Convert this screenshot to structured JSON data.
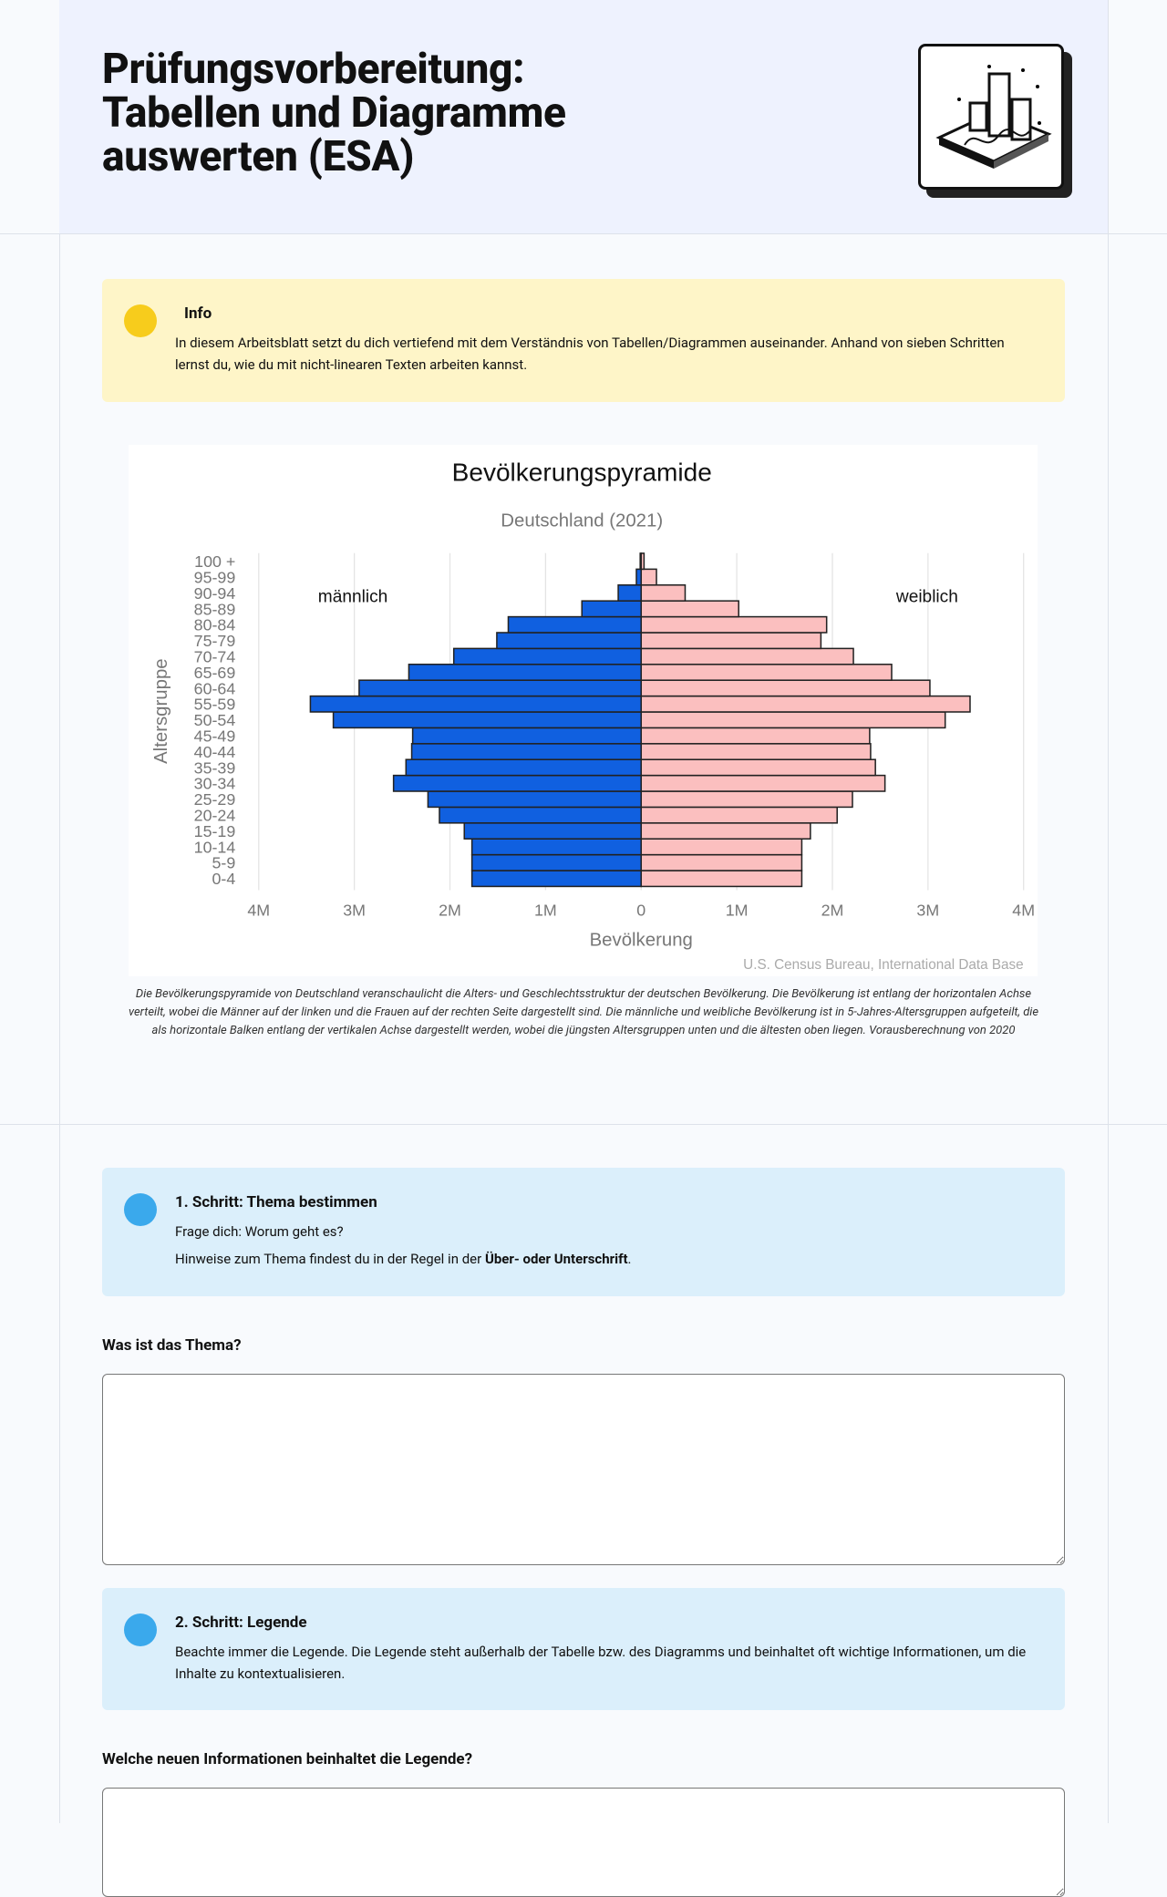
{
  "header": {
    "title_lines": [
      "Prüfungsvorbereitung:",
      "Tabellen und Diagramme",
      "auswerten (ESA)"
    ]
  },
  "info": {
    "title": "Info",
    "text": "In diesem Arbeitsblatt setzt du dich vertiefend mit dem Verständnis von Tabellen/Diagrammen auseinander. Anhand von sieben Schritten lernst du, wie du mit nicht-linearen Texten arbeiten kannst."
  },
  "chart_data": {
    "type": "pyramid",
    "title": "Bevölkerungspyramide",
    "subtitle": "Deutschland (2021)",
    "x_label": "Bevölkerung",
    "y_label": "Altersgruppe",
    "source": "U.S. Census Bureau, International Data Base",
    "categories": [
      "0-4",
      "5-9",
      "10-14",
      "15-19",
      "20-24",
      "25-29",
      "30-34",
      "35-39",
      "40-44",
      "45-49",
      "50-54",
      "55-59",
      "60-64",
      "65-69",
      "70-74",
      "75-79",
      "80-84",
      "85-89",
      "90-94",
      "95-99",
      "100 +"
    ],
    "series": [
      {
        "name": "männlich",
        "color": "#1060e0",
        "side": "left",
        "values": [
          1.77,
          1.77,
          1.77,
          1.85,
          2.11,
          2.23,
          2.59,
          2.46,
          2.4,
          2.39,
          3.22,
          3.46,
          2.95,
          2.43,
          1.96,
          1.51,
          1.39,
          0.62,
          0.24,
          0.05,
          0.01
        ]
      },
      {
        "name": "weiblich",
        "color": "#fbbfbf",
        "side": "right",
        "values": [
          1.68,
          1.68,
          1.68,
          1.77,
          2.05,
          2.21,
          2.55,
          2.45,
          2.4,
          2.39,
          3.18,
          3.44,
          3.02,
          2.62,
          2.22,
          1.88,
          1.94,
          1.02,
          0.46,
          0.16,
          0.03
        ]
      }
    ],
    "xlim": [
      -4,
      4
    ],
    "xticks": [
      {
        "value": -4,
        "label": "4M"
      },
      {
        "value": -3,
        "label": "3M"
      },
      {
        "value": -2,
        "label": "2M"
      },
      {
        "value": -1,
        "label": "1M"
      },
      0,
      {
        "value": 1,
        "label": "1M"
      },
      {
        "value": 2,
        "label": "2M"
      },
      {
        "value": 3,
        "label": "3M"
      },
      {
        "value": 4,
        "label": "4M"
      }
    ],
    "grid": true
  },
  "caption": "Die Bevölkerungspyramide von Deutschland veranschaulicht die Alters- und Geschlechtsstruktur der deutschen Bevölkerung. Die Bevölkerung ist entlang der horizontalen Achse verteilt, wobei die Männer auf der linken und die Frauen auf der rechten Seite dargestellt sind. Die männliche und weibliche Bevölkerung ist in 5-Jahres-Altersgruppen aufgeteilt, die als horizontale Balken entlang der vertikalen Achse dargestellt werden, wobei die jüngsten Altersgruppen unten und die ältesten oben liegen. Vorausberechnung von 2020",
  "steps": [
    {
      "title": "1. Schritt: Thema bestimmen",
      "lines": [
        "Frage dich: Worum geht es?"
      ],
      "hint_before": "Hinweise zum Thema findest du in der Regel in der ",
      "hint_bold": "Über- oder Unterschrift",
      "hint_after": ".",
      "question": "Was ist das Thema?"
    },
    {
      "title": "2. Schritt: Legende",
      "lines": [
        "Beachte immer die Legende. Die Legende steht außerhalb der Tabelle bzw. des Diagramms und beinhaltet oft wichtige Informationen, um die Inhalte zu kontextualisieren."
      ],
      "question": "Welche neuen Informationen beinhaltet die Legende?"
    }
  ]
}
